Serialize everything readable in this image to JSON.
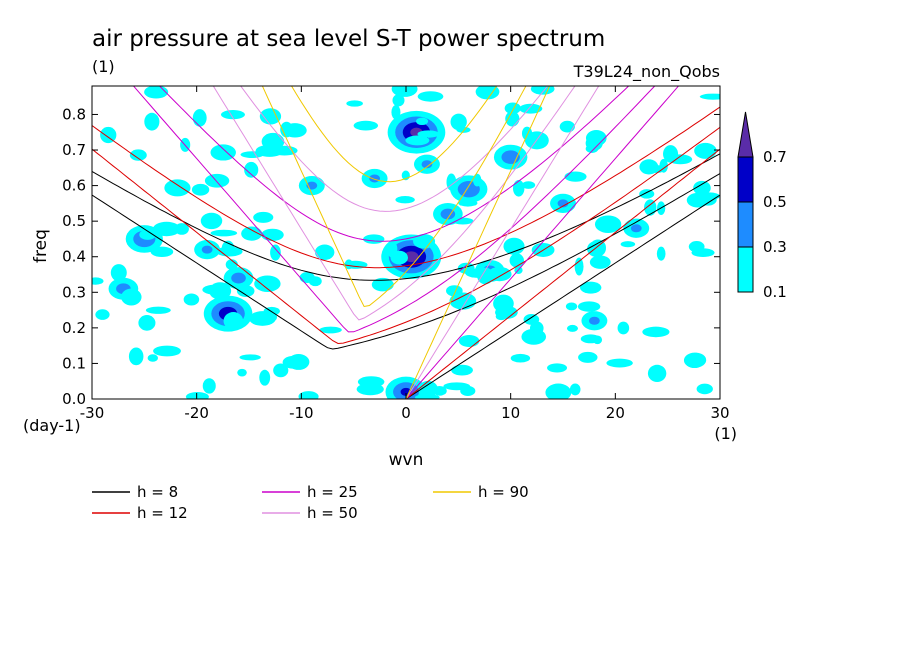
{
  "title": "air pressure at sea level S-T power spectrum",
  "subtitle": "(1)",
  "experiment": "T39L24_non_Qobs",
  "chart_data": {
    "type": "heatmap",
    "xlabel": "wvn",
    "ylabel": "freq",
    "x_unit": "(1)",
    "y_unit": "(day-1)",
    "xlim": [
      -30,
      30
    ],
    "ylim": [
      0,
      0.88
    ],
    "x_ticks": [
      -30,
      -20,
      -10,
      0,
      10,
      20,
      30
    ],
    "x_tick_labels": [
      "-30",
      "-20",
      "-10",
      "0",
      "10",
      "20",
      "30"
    ],
    "y_ticks": [
      0.0,
      0.1,
      0.2,
      0.3,
      0.4,
      0.5,
      0.6,
      0.7,
      0.8
    ],
    "y_tick_labels": [
      "0.0",
      "0.1",
      "0.2",
      "0.3",
      "0.4",
      "0.5",
      "0.6",
      "0.7",
      "0.8"
    ],
    "contour_levels": [
      0.1,
      0.3,
      0.5,
      0.7
    ],
    "colorbar_labels": [
      "0.1",
      "0.3",
      "0.5",
      "0.7"
    ],
    "colorbar_colors": [
      "#00ffff",
      "#1e8cff",
      "#0000c8",
      "#5a2ca8"
    ],
    "blobs": [
      {
        "x": 0.5,
        "y": 0.4,
        "v": 0.75
      },
      {
        "x": 1,
        "y": 0.75,
        "v": 0.72
      },
      {
        "x": 0,
        "y": 0.02,
        "v": 0.5
      },
      {
        "x": -17,
        "y": 0.24,
        "v": 0.6
      },
      {
        "x": -25,
        "y": 0.45,
        "v": 0.45
      },
      {
        "x": 6,
        "y": 0.59,
        "v": 0.45
      },
      {
        "x": -19,
        "y": 0.42,
        "v": 0.3
      },
      {
        "x": 10,
        "y": 0.68,
        "v": 0.4
      },
      {
        "x": 4,
        "y": 0.52,
        "v": 0.35
      },
      {
        "x": -3,
        "y": 0.62,
        "v": 0.3
      },
      {
        "x": 15,
        "y": 0.55,
        "v": 0.3
      },
      {
        "x": -27,
        "y": 0.31,
        "v": 0.35
      },
      {
        "x": 8,
        "y": 0.36,
        "v": 0.35
      },
      {
        "x": -9,
        "y": 0.6,
        "v": 0.3
      },
      {
        "x": -16,
        "y": 0.34,
        "v": 0.35
      },
      {
        "x": 22,
        "y": 0.48,
        "v": 0.3
      },
      {
        "x": 2,
        "y": 0.66,
        "v": 0.3
      },
      {
        "x": 18,
        "y": 0.22,
        "v": 0.3
      }
    ],
    "series": [
      {
        "name": "h =  8",
        "h": 8,
        "color": "#000000"
      },
      {
        "name": "h = 12",
        "h": 12,
        "color": "#dd0000"
      },
      {
        "name": "h = 25",
        "h": 25,
        "color": "#cc00cc"
      },
      {
        "name": "h = 50",
        "h": 50,
        "color": "#e090e0"
      },
      {
        "name": "h = 90",
        "h": 90,
        "color": "#f0c800"
      }
    ],
    "legend_position": "bottom"
  }
}
